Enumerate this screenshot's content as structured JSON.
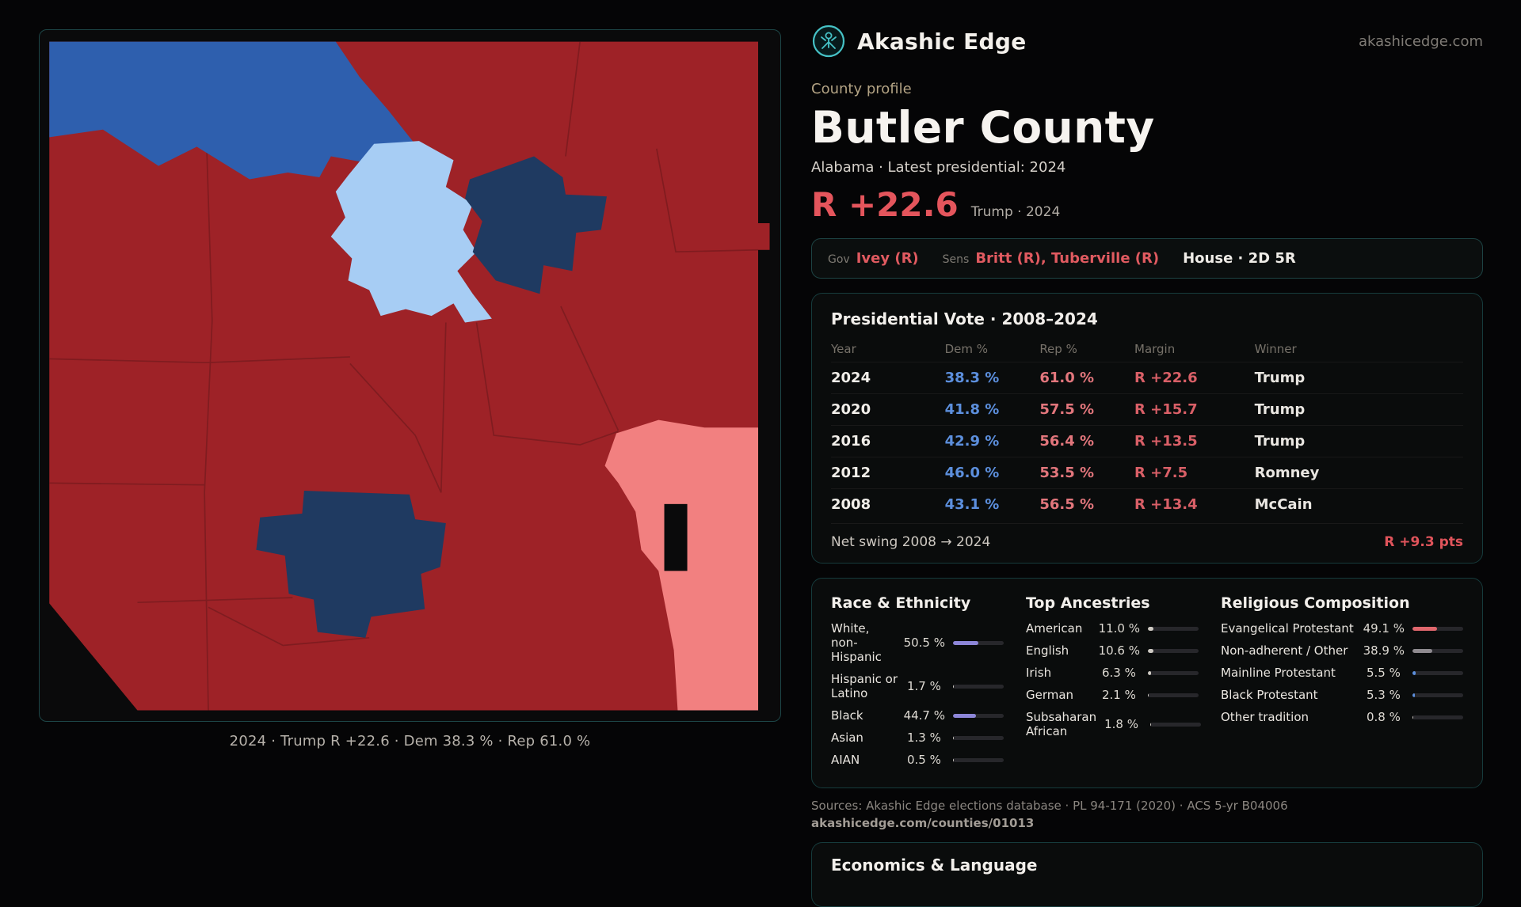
{
  "header": {
    "app_name": "Akashic Edge",
    "site": "akashicedge.com"
  },
  "profile": {
    "eyebrow": "County profile",
    "title": "Butler County",
    "subtitle": "Alabama · Latest presidential: 2024",
    "margin": "R +22.6",
    "margin_context": "Trump · 2024"
  },
  "officials": {
    "gov_label": "Gov",
    "gov": "Ivey (R)",
    "sens_label": "Sens",
    "sens": "Britt (R), Tuberville (R)",
    "house": "House · 2D 5R"
  },
  "presidential_vote": {
    "title": "Presidential Vote · 2008–2024",
    "columns": [
      "Year",
      "Dem %",
      "Rep %",
      "Margin",
      "Winner"
    ],
    "rows": [
      {
        "year": "2024",
        "dem": "38.3 %",
        "rep": "61.0 %",
        "margin": "R +22.6",
        "winner": "Trump"
      },
      {
        "year": "2020",
        "dem": "41.8 %",
        "rep": "57.5 %",
        "margin": "R +15.7",
        "winner": "Trump"
      },
      {
        "year": "2016",
        "dem": "42.9 %",
        "rep": "56.4 %",
        "margin": "R +13.5",
        "winner": "Trump"
      },
      {
        "year": "2012",
        "dem": "46.0 %",
        "rep": "53.5 %",
        "margin": "R +7.5",
        "winner": "Romney"
      },
      {
        "year": "2008",
        "dem": "43.1 %",
        "rep": "56.5 %",
        "margin": "R +13.4",
        "winner": "McCain"
      }
    ],
    "net_swing_label": "Net swing 2008 → 2024",
    "net_swing_value": "R +9.3 pts"
  },
  "demographics": [
    {
      "title": "Race & Ethnicity",
      "items": [
        {
          "label": "White, non-Hispanic",
          "value": "50.5 %",
          "pct": 50.5,
          "color": "#8d86d8"
        },
        {
          "label": "Hispanic or Latino",
          "value": "1.7 %",
          "pct": 1.7,
          "color": "#cfcbc4"
        },
        {
          "label": "Black",
          "value": "44.7 %",
          "pct": 44.7,
          "color": "#8d86d8"
        },
        {
          "label": "Asian",
          "value": "1.3 %",
          "pct": 1.3,
          "color": "#cfcbc4"
        },
        {
          "label": "AIAN",
          "value": "0.5 %",
          "pct": 0.5,
          "color": "#cfcbc4"
        }
      ]
    },
    {
      "title": "Top Ancestries",
      "items": [
        {
          "label": "American",
          "value": "11.0 %",
          "pct": 11.0,
          "color": "#cfcbc4"
        },
        {
          "label": "English",
          "value": "10.6 %",
          "pct": 10.6,
          "color": "#cfcbc4"
        },
        {
          "label": "Irish",
          "value": "6.3 %",
          "pct": 6.3,
          "color": "#cfcbc4"
        },
        {
          "label": "German",
          "value": "2.1 %",
          "pct": 2.1,
          "color": "#cfcbc4"
        },
        {
          "label": "Subsaharan African",
          "value": "1.8 %",
          "pct": 1.8,
          "color": "#cfcbc4"
        }
      ]
    },
    {
      "title": "Religious Composition",
      "items": [
        {
          "label": "Evangelical Protestant",
          "value": "49.1 %",
          "pct": 49.1,
          "color": "#e0676d"
        },
        {
          "label": "Non-adherent / Other",
          "value": "38.9 %",
          "pct": 38.9,
          "color": "#8f8b90"
        },
        {
          "label": "Mainline Protestant",
          "value": "5.5 %",
          "pct": 5.5,
          "color": "#5c8fdd"
        },
        {
          "label": "Black Protestant",
          "value": "5.3 %",
          "pct": 5.3,
          "color": "#5c8fdd"
        },
        {
          "label": "Other tradition",
          "value": "0.8 %",
          "pct": 0.8,
          "color": "#cfcbc4"
        }
      ]
    }
  ],
  "sources": {
    "line1": "Sources: Akashic Edge elections database · PL 94-171 (2020) · ACS 5-yr B04006",
    "line2": "akashicedge.com/counties/01013"
  },
  "economics": {
    "title": "Economics & Language"
  },
  "map": {
    "caption": "2024 · Trump R +22.6 · Dem 38.3 % · Rep 61.0 %",
    "colors": {
      "strong_rep": "#9e2227",
      "lean_rep": "#f28080",
      "strong_dem_dark": "#1f3a61",
      "dem": "#2e5fae",
      "lean_dem_light": "#a7cdf4",
      "background": "#0a0a0b"
    }
  },
  "accents": {
    "red": "#e4555c",
    "dem_blue": "#5c8fdd",
    "teal_border": "#1d4647"
  }
}
